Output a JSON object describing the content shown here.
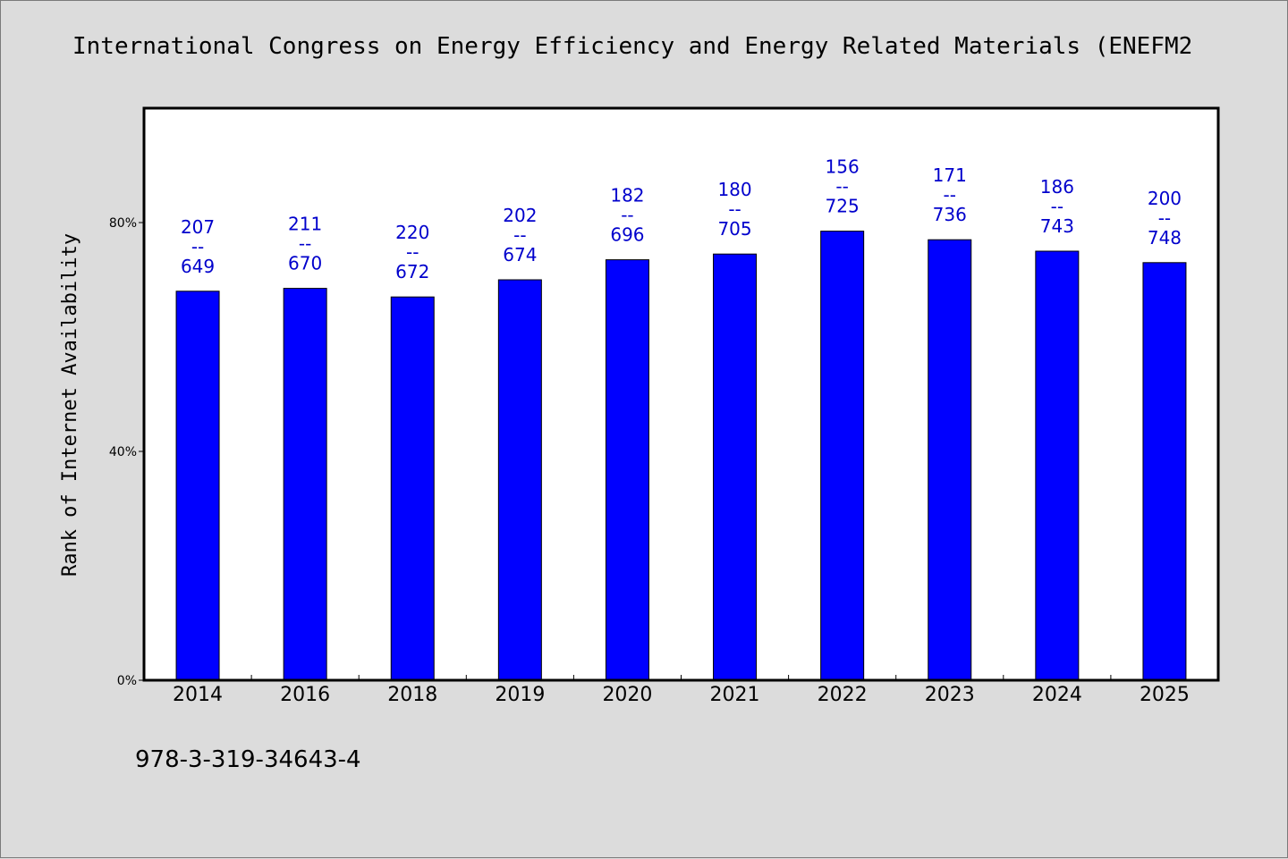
{
  "chart_data": {
    "type": "bar",
    "title": "International Congress on Energy Efficiency and Energy Related Materials (ENEFM2",
    "xlabel": "",
    "ylabel": "Rank of Internet Availability",
    "ylim": [
      0,
      100
    ],
    "yticks": [
      {
        "value": 0,
        "label": "0%"
      },
      {
        "value": 40,
        "label": "40%"
      },
      {
        "value": 80,
        "label": "80%"
      }
    ],
    "categories": [
      "2014",
      "2016",
      "2018",
      "2019",
      "2020",
      "2021",
      "2022",
      "2023",
      "2024",
      "2025"
    ],
    "values": [
      68,
      68.5,
      67,
      70,
      73.5,
      74.5,
      78.5,
      77,
      75,
      73
    ],
    "bar_labels": [
      {
        "top": "207",
        "sep": "--",
        "bottom": "649"
      },
      {
        "top": "211",
        "sep": "--",
        "bottom": "670"
      },
      {
        "top": "220",
        "sep": "--",
        "bottom": "672"
      },
      {
        "top": "202",
        "sep": "--",
        "bottom": "674"
      },
      {
        "top": "182",
        "sep": "--",
        "bottom": "696"
      },
      {
        "top": "180",
        "sep": "--",
        "bottom": "705"
      },
      {
        "top": "156",
        "sep": "--",
        "bottom": "725"
      },
      {
        "top": "171",
        "sep": "--",
        "bottom": "736"
      },
      {
        "top": "186",
        "sep": "--",
        "bottom": "743"
      },
      {
        "top": "200",
        "sep": "--",
        "bottom": "748"
      }
    ],
    "grid": false,
    "legend": "none",
    "colors": {
      "bar": "#0000ff",
      "label": "#0000cc",
      "plot_bg": "#ffffff",
      "page_bg": "#dcdcdc"
    }
  },
  "footer": {
    "code": "978-3-319-34643-4"
  }
}
